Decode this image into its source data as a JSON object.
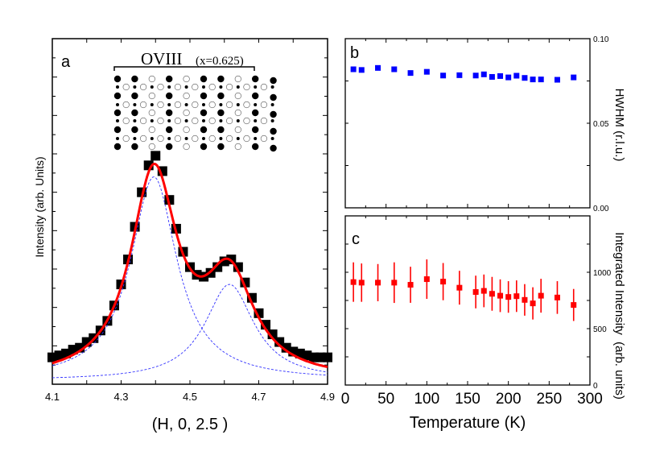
{
  "colors": {
    "data_a": "#000000",
    "fit_total": "#ff0000",
    "fit_components": "#3333ff",
    "panel_b": "#0000ff",
    "panel_c": "#ff0000"
  },
  "chart_data": [
    {
      "panel": "a",
      "type": "scatter",
      "title": "OVIII",
      "title_param": "(x=0.625)",
      "xlabel": "(H, 0, 2.5 )",
      "ylabel": "Intensity (arb. Units)",
      "xlim": [
        4.1,
        4.9
      ],
      "ylim": [
        0,
        18
      ],
      "xticks": [
        "4.1",
        "4.3",
        "4.5",
        "4.7",
        "4.9"
      ],
      "grid": false,
      "x": [
        4.1,
        4.12,
        4.14,
        4.16,
        4.18,
        4.2,
        4.22,
        4.24,
        4.26,
        4.28,
        4.3,
        4.32,
        4.34,
        4.36,
        4.38,
        4.4,
        4.42,
        4.44,
        4.46,
        4.48,
        4.5,
        4.52,
        4.54,
        4.56,
        4.58,
        4.6,
        4.62,
        4.64,
        4.66,
        4.68,
        4.7,
        4.72,
        4.74,
        4.76,
        4.78,
        4.8,
        4.82,
        4.84,
        4.86,
        4.88,
        4.9
      ],
      "y": [
        1.4,
        1.5,
        1.6,
        1.8,
        1.9,
        2.2,
        2.4,
        2.8,
        3.3,
        4.1,
        5.2,
        6.5,
        8.2,
        10.0,
        11.4,
        11.9,
        11.1,
        9.6,
        8.1,
        6.9,
        6.1,
        5.7,
        5.6,
        5.8,
        6.1,
        6.4,
        6.5,
        6.1,
        5.3,
        4.5,
        3.7,
        3.1,
        2.6,
        2.2,
        1.9,
        1.7,
        1.6,
        1.5,
        1.4,
        1.4,
        1.4
      ],
      "fit": {
        "background": 0.2,
        "peaks": [
          {
            "center": 4.395,
            "amplitude": 10.6,
            "hwhm": 0.082
          },
          {
            "center": 4.615,
            "amplitude": 5.0,
            "hwhm": 0.087
          }
        ]
      },
      "inset_lattice": {
        "rows": 9,
        "row_pattern": "FFOFOFFOFF"
      }
    },
    {
      "panel": "b",
      "type": "scatter",
      "ylabel": "HWHM (r.l.u.)",
      "xlim": [
        0,
        300
      ],
      "ylim": [
        0,
        0.1
      ],
      "yticks": [
        "0.00",
        "0.05",
        "0.10"
      ],
      "grid": false,
      "x": [
        10,
        20,
        40,
        60,
        80,
        100,
        120,
        140,
        160,
        170,
        180,
        190,
        200,
        210,
        220,
        230,
        240,
        260,
        280
      ],
      "y": [
        0.0819,
        0.0815,
        0.0827,
        0.0819,
        0.0797,
        0.0804,
        0.0782,
        0.0784,
        0.0782,
        0.0789,
        0.0774,
        0.0779,
        0.0771,
        0.0781,
        0.0768,
        0.0759,
        0.0759,
        0.0757,
        0.0771
      ],
      "yerr": [
        0.0008,
        0.0008,
        0.0008,
        0.0008,
        0.0009,
        0.0009,
        0.0012,
        0.0009,
        0.0009,
        0.0011,
        0.0009,
        0.0009,
        0.0009,
        0.0011,
        0.0009,
        0.0009,
        0.0009,
        0.0009,
        0.001
      ]
    },
    {
      "panel": "c",
      "type": "scatter",
      "xlabel": "Temperature (K)",
      "ylabel": "Integrated Intensity  (arb. units)",
      "xlim": [
        0,
        300
      ],
      "ylim": [
        0,
        1500
      ],
      "xticks": [
        "0",
        "50",
        "100",
        "150",
        "200",
        "250",
        "300"
      ],
      "yticks": [
        "0",
        "500",
        "1000"
      ],
      "grid": false,
      "x": [
        10,
        20,
        40,
        60,
        80,
        100,
        120,
        140,
        160,
        170,
        180,
        190,
        200,
        210,
        220,
        230,
        240,
        260,
        280
      ],
      "y": [
        913,
        908,
        908,
        908,
        889,
        939,
        917,
        863,
        825,
        835,
        809,
        792,
        781,
        788,
        755,
        724,
        792,
        776,
        710
      ],
      "yerr": [
        175,
        170,
        165,
        180,
        160,
        175,
        165,
        150,
        145,
        145,
        150,
        145,
        140,
        140,
        140,
        143,
        150,
        145,
        142
      ]
    }
  ]
}
